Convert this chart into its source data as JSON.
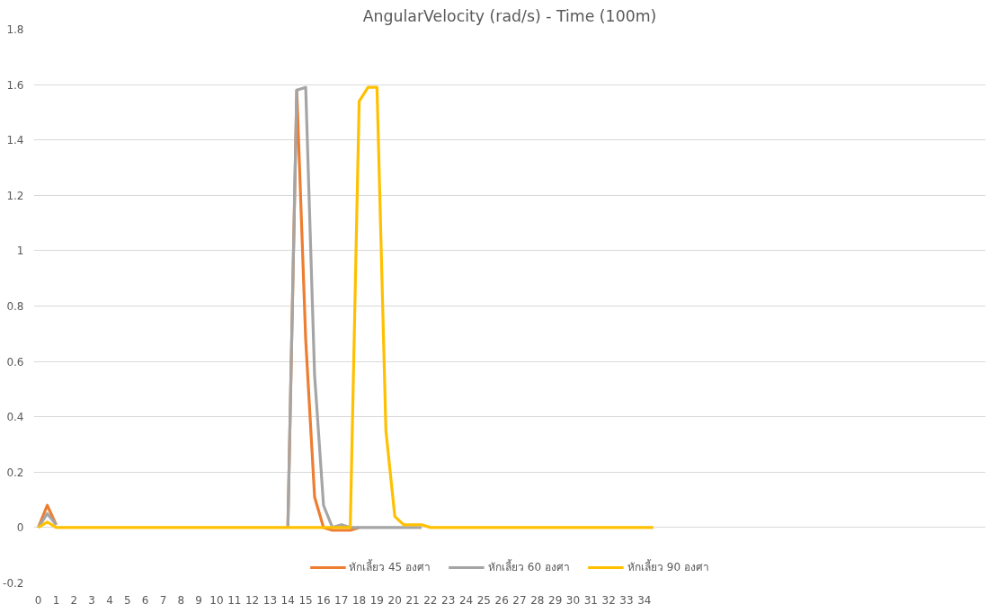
{
  "chart_data": {
    "type": "line",
    "title": "AngularVelocity (rad/s) - Time (100m)",
    "x": [
      0,
      0.5,
      1,
      1.5,
      2,
      2.5,
      3,
      3.5,
      4,
      4.5,
      5,
      5.5,
      6,
      6.5,
      7,
      7.5,
      8,
      8.5,
      9,
      9.5,
      10,
      10.5,
      11,
      11.5,
      12,
      12.5,
      13,
      13.5,
      14,
      14.5,
      15,
      15.5,
      16,
      16.5,
      17,
      17.5,
      18,
      18.5,
      19,
      19.5,
      20,
      20.5,
      21,
      21.5,
      22,
      22.5,
      23,
      23.5,
      24,
      24.5,
      25,
      25.5,
      26,
      26.5,
      27,
      27.5,
      28,
      28.5,
      29,
      29.5,
      30,
      30.5,
      31,
      31.5,
      32,
      32.5,
      33,
      33.5,
      34,
      34.5
    ],
    "series": [
      {
        "name": "หักเลี้ยว 45 องศา",
        "color": "#ed7d31",
        "values": [
          0,
          0.08,
          0.01,
          null,
          null,
          null,
          null,
          null,
          null,
          null,
          null,
          null,
          null,
          null,
          null,
          null,
          null,
          null,
          null,
          null,
          null,
          null,
          null,
          null,
          null,
          null,
          null,
          null,
          0,
          1.58,
          0.68,
          0.11,
          0,
          -0.01,
          -0.01,
          -0.01,
          0,
          null,
          null,
          null,
          null,
          null,
          null,
          null,
          null,
          null,
          null,
          null,
          null,
          null,
          null,
          null,
          null,
          null,
          null,
          null,
          null,
          null,
          null,
          null,
          null,
          null,
          null,
          null,
          null,
          null,
          null,
          null,
          null,
          null
        ]
      },
      {
        "name": "หักเลี้ยว 60 องศา",
        "color": "#a5a5a5",
        "values": [
          0,
          0.05,
          0.01,
          null,
          null,
          null,
          null,
          null,
          null,
          null,
          null,
          null,
          null,
          null,
          null,
          null,
          null,
          null,
          null,
          null,
          null,
          null,
          null,
          null,
          null,
          null,
          null,
          null,
          0,
          1.58,
          1.59,
          0.55,
          0.08,
          0,
          0.01,
          0,
          0,
          0,
          0,
          0,
          0,
          0,
          0,
          0,
          null,
          null,
          null,
          null,
          null,
          null,
          null,
          null,
          null,
          null,
          null,
          null,
          null,
          null,
          null,
          null,
          null,
          null,
          null,
          null,
          null,
          null,
          null,
          null,
          null,
          null
        ]
      },
      {
        "name": "หักเลี้ยว 90 องศา",
        "color": "#ffc000",
        "values": [
          0,
          0.02,
          0,
          0,
          0,
          0,
          0,
          0,
          0,
          0,
          0,
          0,
          0,
          0,
          0,
          0,
          0,
          0,
          0,
          0,
          0,
          0,
          0,
          0,
          0,
          0,
          0,
          0,
          0,
          0,
          0,
          0,
          0,
          0,
          0,
          0,
          1.54,
          1.59,
          1.59,
          0.35,
          0.04,
          0.01,
          0.01,
          0.01,
          0,
          0,
          0,
          0,
          0,
          0,
          0,
          0,
          0,
          0,
          0,
          0,
          0,
          0,
          0,
          0,
          0,
          0,
          0,
          0,
          0,
          0,
          0,
          0,
          0,
          0
        ]
      }
    ],
    "xlim": [
      -0.26,
      53.15
    ],
    "xticks": [
      0,
      1,
      2,
      3,
      4,
      5,
      6,
      7,
      8,
      9,
      10,
      11,
      12,
      13,
      14,
      15,
      16,
      17,
      18,
      19,
      20,
      21,
      22,
      23,
      24,
      25,
      26,
      27,
      28,
      29,
      30,
      31,
      32,
      33,
      34
    ],
    "ylim": [
      -0.2,
      1.8
    ],
    "yticks": [
      -0.2,
      0,
      0.2,
      0.4,
      0.6,
      0.8,
      1,
      1.2,
      1.4,
      1.6,
      1.8
    ],
    "grid": "y",
    "legend": "bottom",
    "marker": "none",
    "line_style": "solid"
  }
}
